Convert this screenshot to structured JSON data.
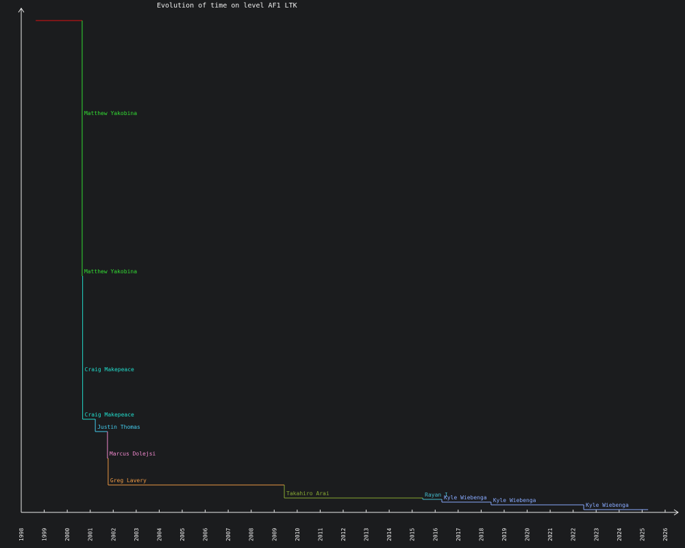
{
  "chart_data": {
    "type": "step",
    "title": "Evolution of time on level AF1 LTK",
    "x": [
      1998.63,
      2000.65,
      2000.65,
      2000.67,
      2000.67,
      2001.22,
      2001.75,
      2001.78,
      2009.44,
      2015.46,
      2016.29,
      2018.43,
      2022.46,
      2025.26
    ],
    "values": [
      718,
      576,
      345,
      202,
      136,
      118,
      79,
      40,
      21,
      19,
      15,
      11,
      4,
      4
    ],
    "labels": [
      null,
      "Matthew Yakobina",
      "Matthew Yakobina",
      "Craig Makepeace",
      "Craig Makepeace",
      "Justin Thomas",
      "Marcus Dolejsi",
      "Greg Lavery",
      "Takahiro Arai",
      "Rayan I",
      "Kyle Wiebenga",
      "Kyle Wiebenga",
      "Kyle Wiebenga",
      null
    ],
    "colors": [
      "#dd1111",
      "#33dd33",
      "#33dd33",
      "#22ddcc",
      "#22ddcc",
      "#44ccee",
      "#ee88cc",
      "#ee9944",
      "#88aa33",
      "#44bbcc",
      "#88aaff",
      "#88aaff",
      "#88aaff",
      "#88aaff"
    ],
    "xlim": [
      1998,
      2026
    ],
    "xticks": [
      1998,
      1999,
      2000,
      2001,
      2002,
      2003,
      2004,
      2005,
      2006,
      2007,
      2008,
      2009,
      2010,
      2011,
      2012,
      2013,
      2014,
      2015,
      2016,
      2017,
      2018,
      2019,
      2020,
      2021,
      2022,
      2023,
      2024,
      2025,
      2026
    ],
    "ylim": [
      0,
      736
    ]
  }
}
